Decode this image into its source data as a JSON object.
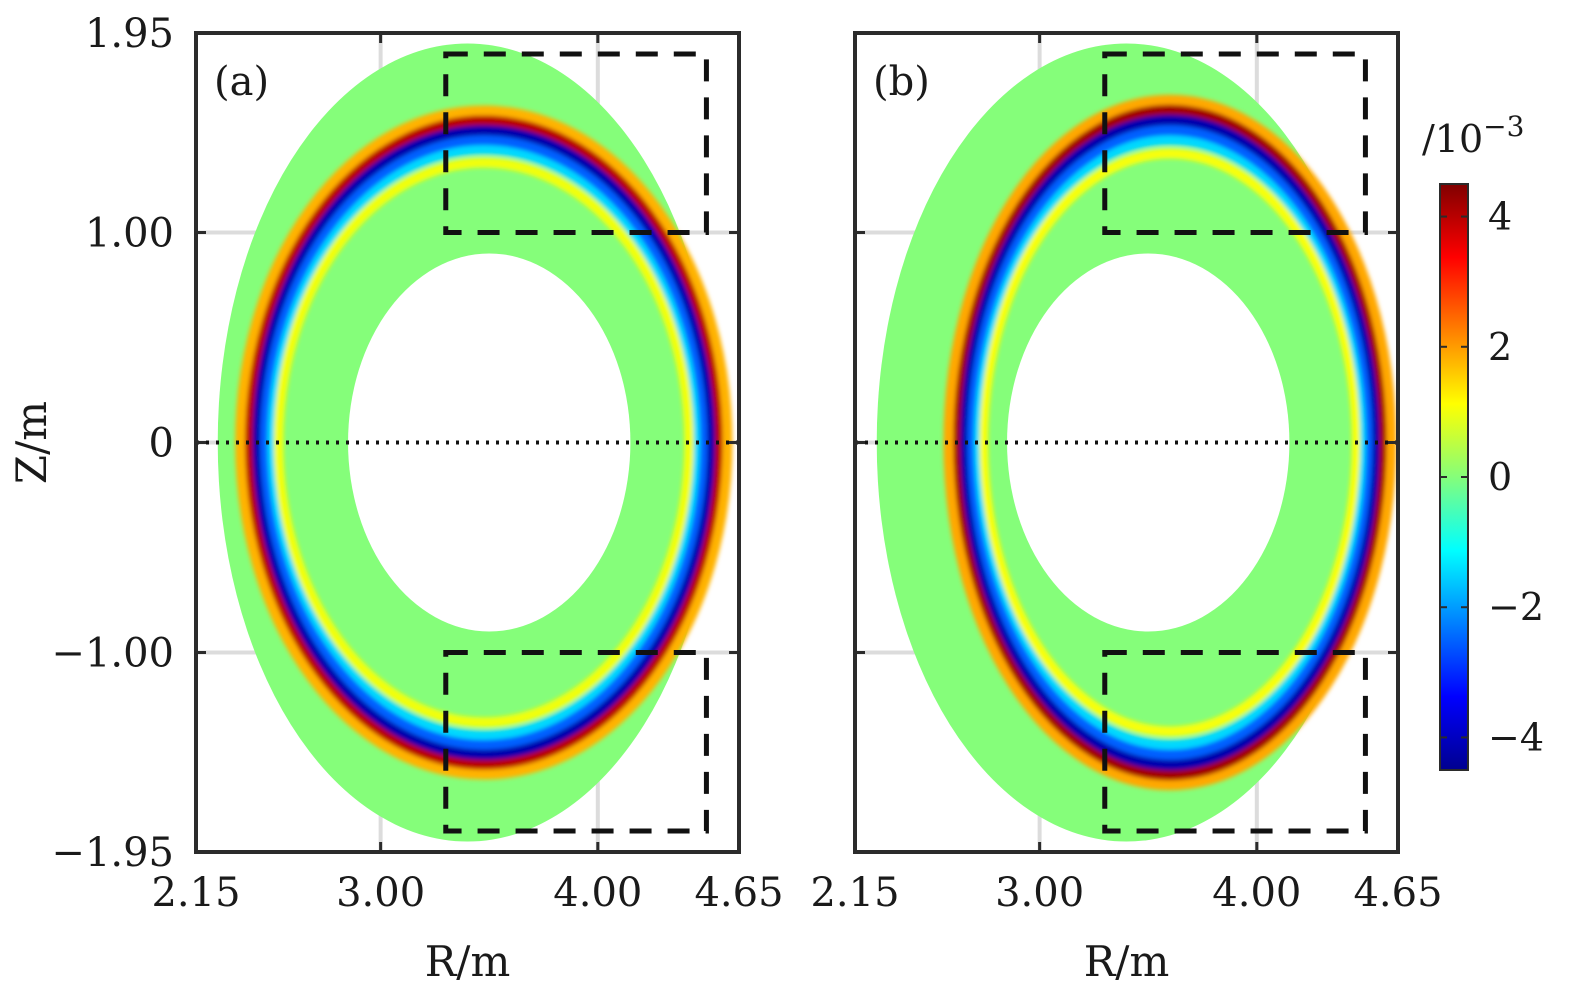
{
  "chart_data": [
    {
      "type": "heatmap",
      "panel_label": "(a)",
      "xlabel": "R/m",
      "ylabel": "Z/m",
      "xlim": [
        2.15,
        4.65
      ],
      "ylim": [
        -1.95,
        1.95
      ],
      "x_ticks": [
        2.15,
        3.0,
        4.0,
        4.65
      ],
      "x_tick_labels": [
        "2.15",
        "3.00",
        "4.00",
        "4.65"
      ],
      "y_ticks": [
        1.95,
        1.0,
        0,
        -1.0,
        -1.95
      ],
      "y_tick_labels": [
        "1.95",
        "1.00",
        "0",
        "−1.00",
        "−1.95"
      ],
      "grid": true,
      "plasma_domain": {
        "outer_center": [
          3.4,
          0
        ],
        "outer_radii": [
          1.15,
          1.9
        ],
        "inner_center": [
          3.5,
          0
        ],
        "inner_radii": [
          0.65,
          0.9
        ]
      },
      "mode_structure": {
        "center": [
          3.475,
          0
        ],
        "radii": [
          1.1,
          1.55
        ],
        "blue_peak": -4.2,
        "red_peak": 4.0
      },
      "midplane_line": {
        "z": 0,
        "style": "dotted"
      },
      "dashed_boxes": [
        {
          "r": [
            3.3,
            4.5
          ],
          "z": [
            1.0,
            1.85
          ]
        },
        {
          "r": [
            3.3,
            4.5
          ],
          "z": [
            -1.85,
            -1.0
          ]
        }
      ]
    },
    {
      "type": "heatmap",
      "panel_label": "(b)",
      "xlabel": "R/m",
      "ylabel": "",
      "xlim": [
        2.15,
        4.65
      ],
      "ylim": [
        -1.95,
        1.95
      ],
      "x_ticks": [
        2.15,
        3.0,
        4.0,
        4.65
      ],
      "x_tick_labels": [
        "2.15",
        "3.00",
        "4.00",
        "4.65"
      ],
      "y_ticks": [
        1.95,
        1.0,
        0,
        -1.0,
        -1.95
      ],
      "grid": true,
      "plasma_domain": {
        "outer_center": [
          3.4,
          0
        ],
        "outer_radii": [
          1.15,
          1.9
        ],
        "inner_center": [
          3.5,
          0
        ],
        "inner_radii": [
          0.65,
          0.9
        ]
      },
      "mode_structure": {
        "center": [
          3.6,
          0
        ],
        "radii": [
          1.0,
          1.6
        ],
        "blue_peak": -4.2,
        "red_peak": 4.2
      },
      "midplane_line": {
        "z": 0,
        "style": "dotted"
      },
      "dashed_boxes": [
        {
          "r": [
            3.3,
            4.5
          ],
          "z": [
            1.0,
            1.85
          ]
        },
        {
          "r": [
            3.3,
            4.5
          ],
          "z": [
            -1.85,
            -1.0
          ]
        }
      ]
    }
  ],
  "colorbar": {
    "unit_label": "/10",
    "unit_exponent": "−3",
    "range": [
      -4.5,
      4.5
    ],
    "ticks": [
      4,
      2,
      0,
      -2,
      -4
    ],
    "tick_labels": [
      "4",
      "2",
      "0",
      "−2",
      "−4"
    ],
    "colormap": "jet",
    "background_color": "#85fe7a"
  }
}
